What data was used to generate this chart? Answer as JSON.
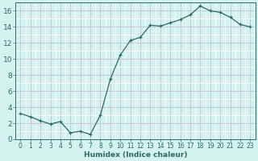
{
  "x": [
    0,
    1,
    2,
    3,
    4,
    5,
    6,
    7,
    8,
    9,
    10,
    11,
    12,
    13,
    14,
    15,
    16,
    17,
    18,
    19,
    20,
    21,
    22,
    23
  ],
  "y": [
    3.2,
    2.8,
    2.3,
    1.9,
    2.2,
    0.8,
    1.0,
    0.6,
    3.0,
    7.5,
    10.5,
    12.3,
    12.7,
    14.2,
    14.1,
    14.5,
    14.9,
    15.5,
    16.6,
    16.0,
    15.8,
    15.2,
    14.3,
    14.0
  ],
  "xlabel": "Humidex (Indice chaleur)",
  "line_color": "#2a6b65",
  "marker": "+",
  "bg_color": "#d4f2ee",
  "grid_major_color": "#c8c8d8",
  "grid_minor_color": "#ffffff",
  "ylim": [
    0,
    17
  ],
  "xlim": [
    -0.5,
    23.5
  ],
  "yticks": [
    0,
    2,
    4,
    6,
    8,
    10,
    12,
    14,
    16
  ],
  "xticks": [
    0,
    1,
    2,
    3,
    4,
    5,
    6,
    7,
    8,
    9,
    10,
    11,
    12,
    13,
    14,
    15,
    16,
    17,
    18,
    19,
    20,
    21,
    22,
    23
  ],
  "tick_fontsize": 5.5,
  "xlabel_fontsize": 6.5,
  "ytick_fontsize": 6.5
}
